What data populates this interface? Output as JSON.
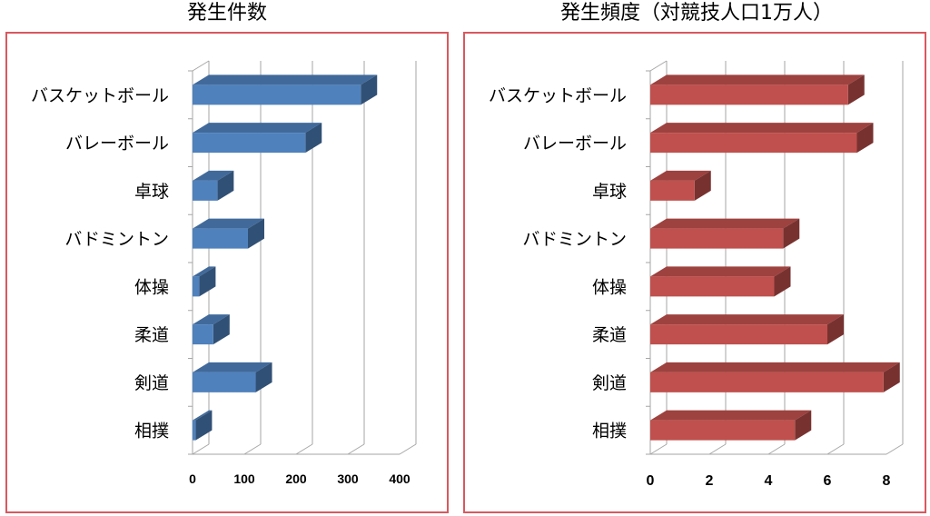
{
  "chart_data": [
    {
      "type": "bar",
      "orientation": "horizontal",
      "title": "発生件数",
      "categories": [
        "バスケットボール",
        "バレーボール",
        "卓球",
        "バドミントン",
        "体操",
        "柔道",
        "剣道",
        "相撲"
      ],
      "values": [
        325,
        218,
        48,
        107,
        13,
        40,
        122,
        6
      ],
      "xlim": [
        0,
        400
      ],
      "xticks": [
        "0",
        "100",
        "200",
        "300",
        "400"
      ],
      "grid": true,
      "three_d": true,
      "color": "#4f81bd"
    },
    {
      "type": "bar",
      "orientation": "horizontal",
      "title": "発生頻度（対競技人口1万人）",
      "categories": [
        "バスケットボール",
        "バレーボール",
        "卓球",
        "バドミントン",
        "体操",
        "柔道",
        "剣道",
        "相撲"
      ],
      "values": [
        6.7,
        7.0,
        1.5,
        4.5,
        4.2,
        6.0,
        7.9,
        4.9
      ],
      "xlim": [
        0,
        8
      ],
      "xticks": [
        "0",
        "2",
        "4",
        "6",
        "8"
      ],
      "grid": true,
      "three_d": true,
      "color": "#c0504d"
    }
  ]
}
